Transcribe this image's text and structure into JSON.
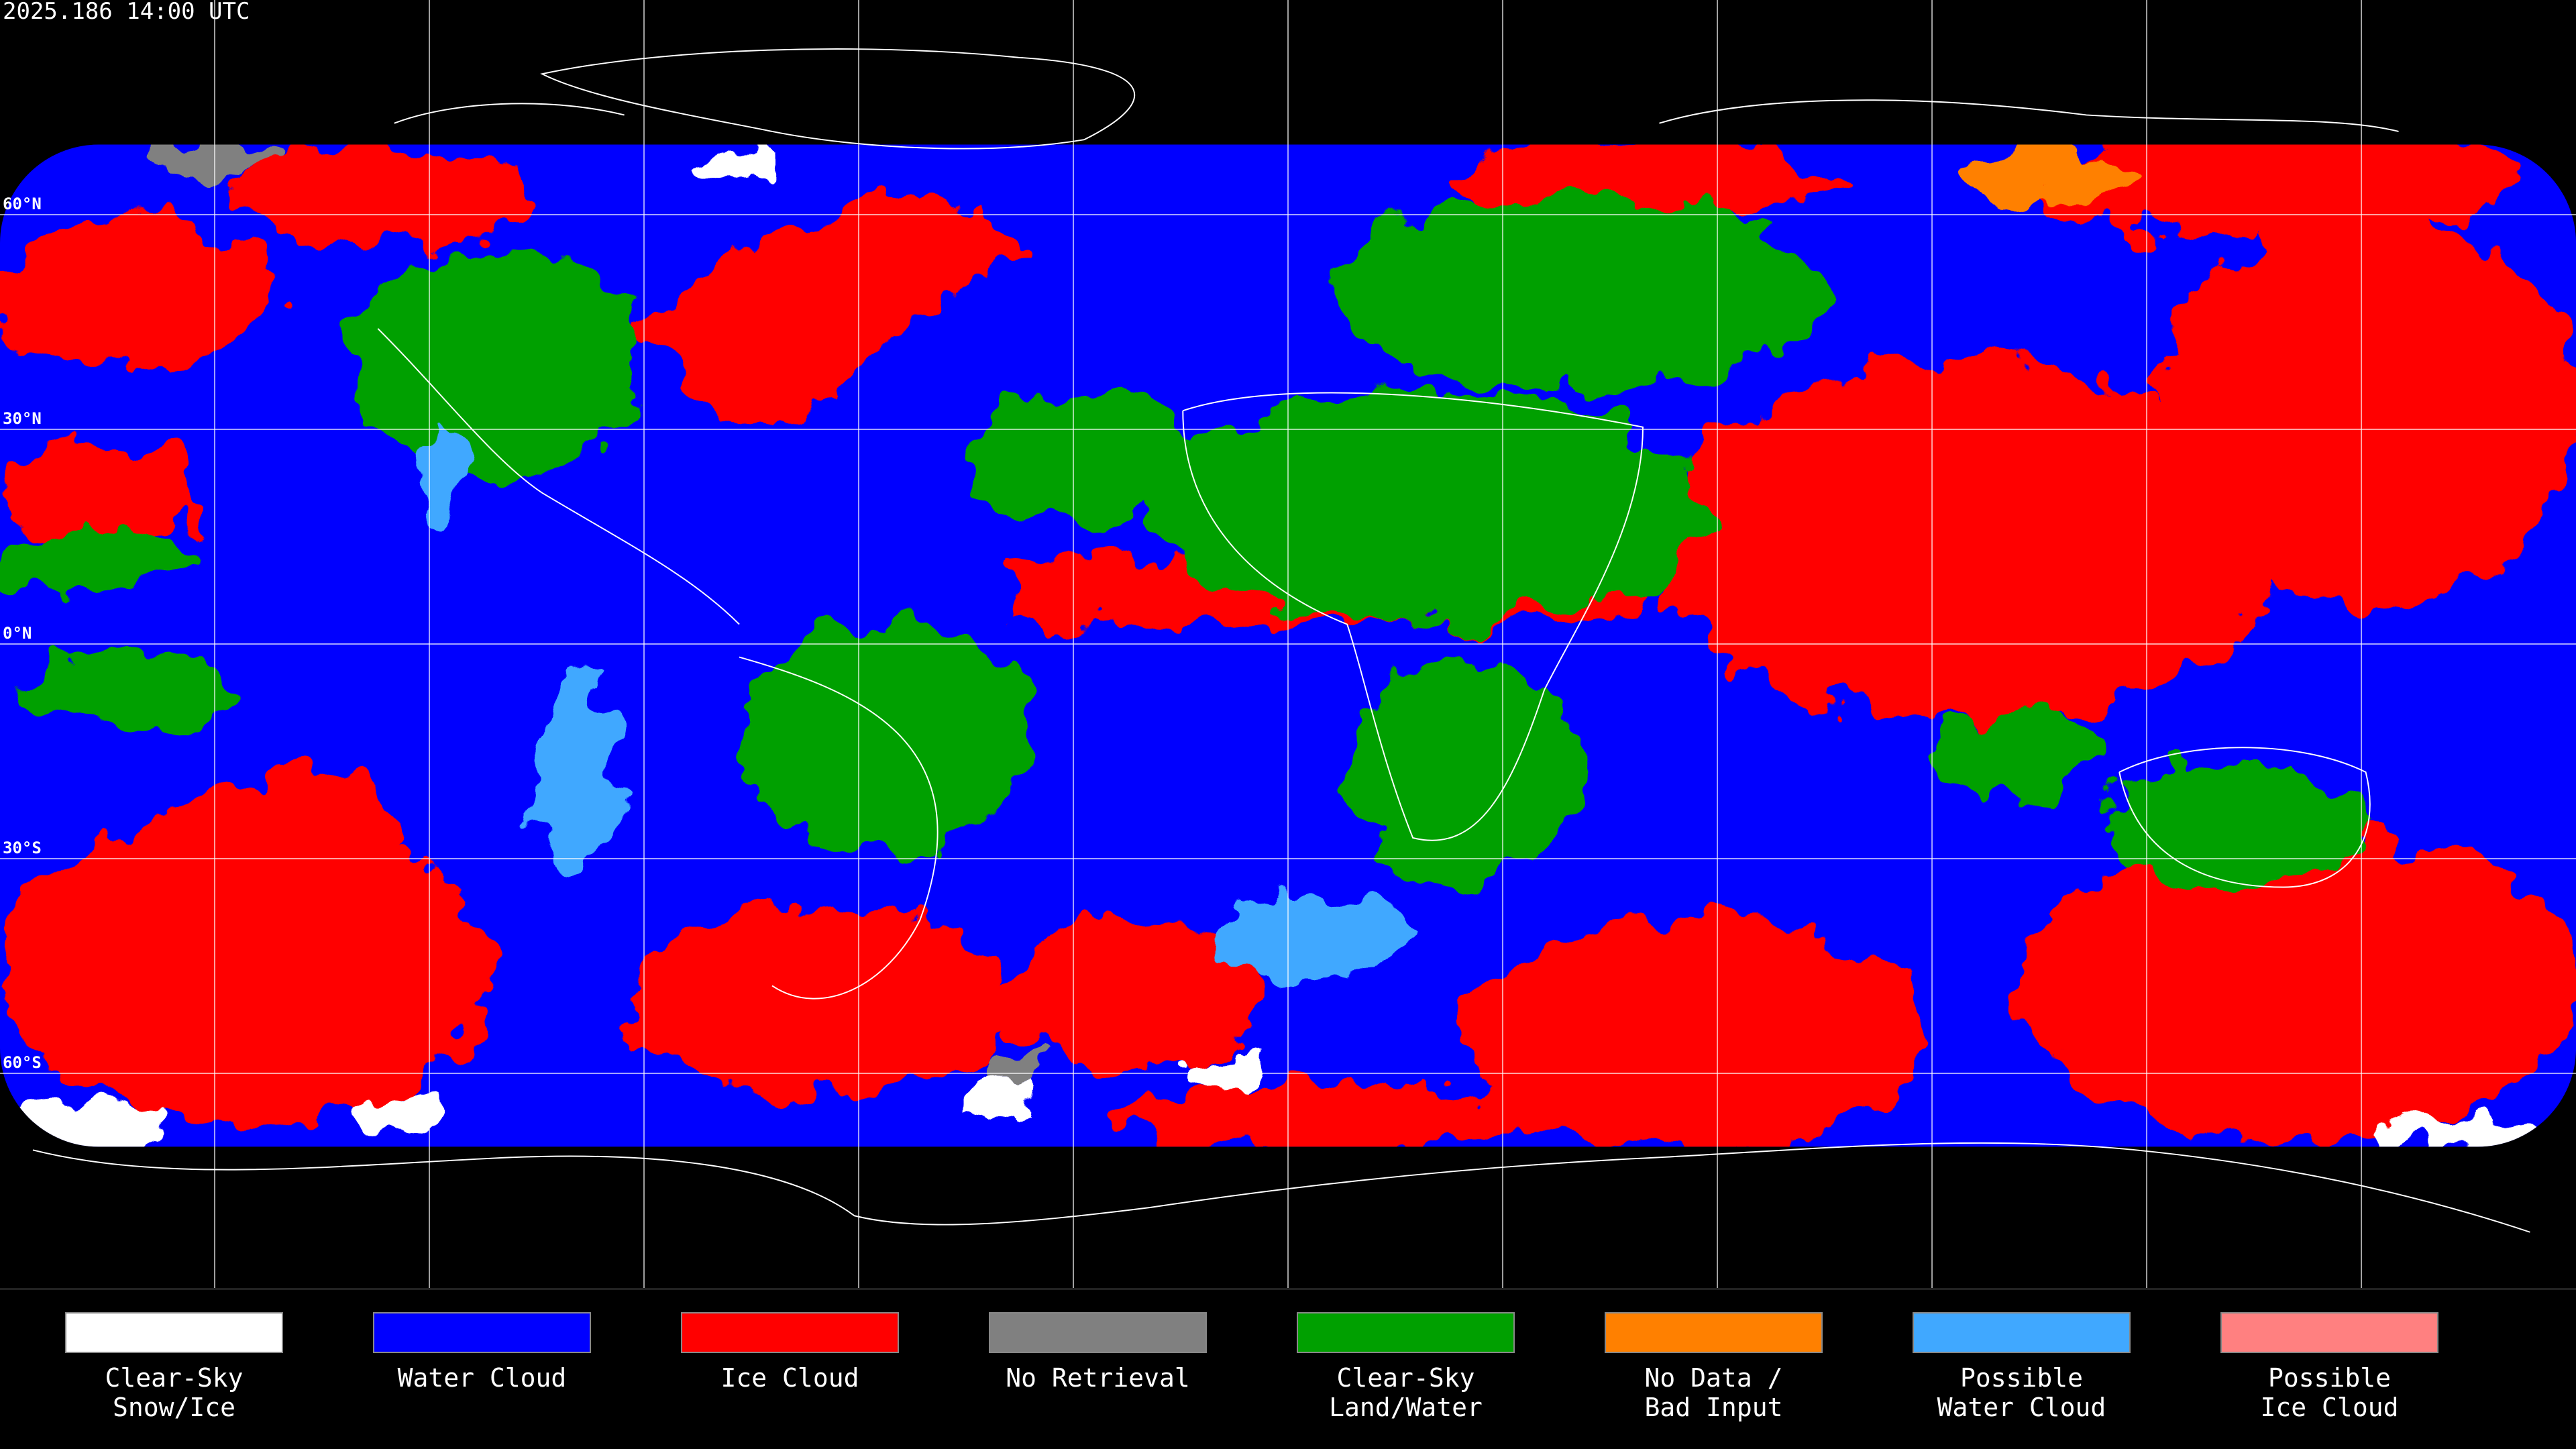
{
  "timestamp": "2025.186 14:00 UTC",
  "latitude_labels": [
    "60°N",
    "30°N",
    "0°N",
    "30°S",
    "60°S"
  ],
  "legend": [
    {
      "label": [
        "Clear-Sky",
        "Snow/Ice"
      ],
      "color": "#ffffff"
    },
    {
      "label": [
        "Water Cloud"
      ],
      "color": "#0000ff"
    },
    {
      "label": [
        "Ice Cloud"
      ],
      "color": "#ff0000"
    },
    {
      "label": [
        "No Retrieval"
      ],
      "color": "#808080"
    },
    {
      "label": [
        "Clear-Sky",
        "Land/Water"
      ],
      "color": "#00a000"
    },
    {
      "label": [
        "No Data /",
        "Bad Input"
      ],
      "color": "#ff8000"
    },
    {
      "label": [
        "Possible",
        "Water Cloud"
      ],
      "color": "#40a8ff"
    },
    {
      "label": [
        "Possible",
        "Ice Cloud"
      ],
      "color": "#ff8080"
    }
  ]
}
